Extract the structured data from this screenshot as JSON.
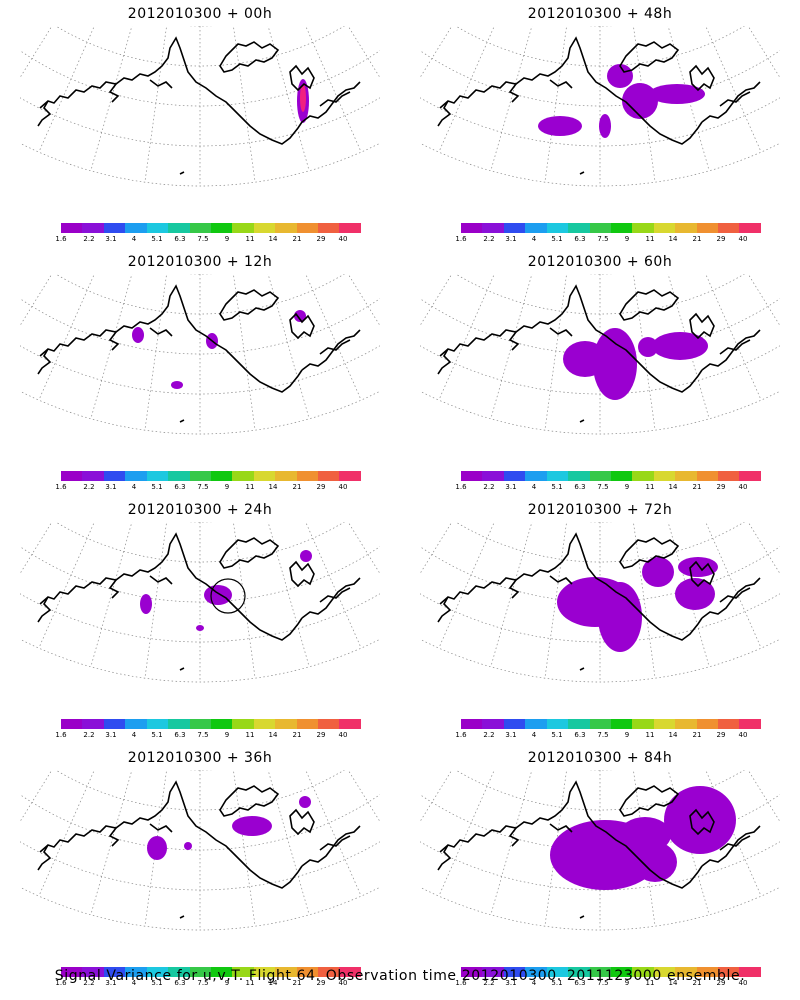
{
  "panels": [
    {
      "title": "2012010300 + 00h"
    },
    {
      "title": "2012010300 + 48h"
    },
    {
      "title": "2012010300 + 12h"
    },
    {
      "title": "2012010300 + 60h"
    },
    {
      "title": "2012010300 + 24h"
    },
    {
      "title": "2012010300 + 72h"
    },
    {
      "title": "2012010300 + 36h"
    },
    {
      "title": "2012010300 + 84h"
    }
  ],
  "legend": {
    "colors": [
      "#9a00c8",
      "#8a10d8",
      "#2f4cf0",
      "#1c9ef0",
      "#1cc8e0",
      "#16c8a0",
      "#36c848",
      "#10c810",
      "#98d818",
      "#d8d830",
      "#e8b830",
      "#f09030",
      "#f06040",
      "#f03068"
    ],
    "labels": [
      "1.6",
      "2.2",
      "3.1",
      "4",
      "5.1",
      "6.3",
      "7.5",
      "9",
      "11",
      "14",
      "21",
      "29",
      "40"
    ]
  },
  "footer": "Signal Variance for u,v,T. Flight 64. Observation time 2012010300. 2011123000 ensemble."
}
